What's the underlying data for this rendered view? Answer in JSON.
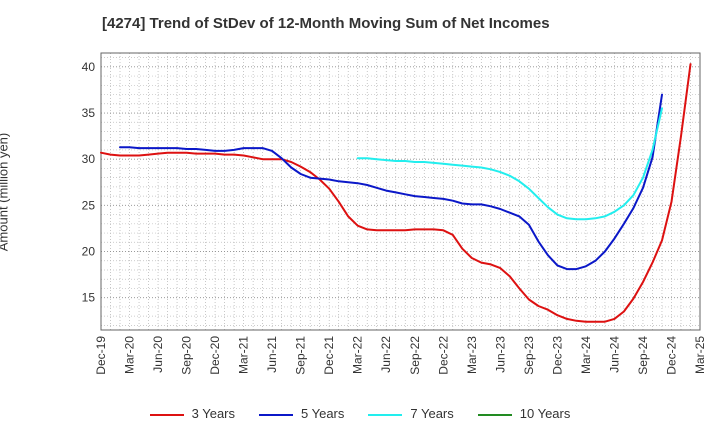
{
  "chart_data": {
    "type": "line",
    "title": "[4274]  Trend of StDev of 12-Month Moving Sum of Net Incomes",
    "xlabel": "",
    "ylabel": "Amount (million yen)",
    "x_tick_labels": [
      "Dec-19",
      "Mar-20",
      "Jun-20",
      "Sep-20",
      "Dec-20",
      "Mar-21",
      "Jun-21",
      "Sep-21",
      "Dec-21",
      "Mar-22",
      "Jun-22",
      "Sep-22",
      "Dec-22",
      "Mar-23",
      "Jun-23",
      "Sep-23",
      "Dec-23",
      "Mar-24",
      "Jun-24",
      "Sep-24",
      "Dec-24",
      "Mar-25"
    ],
    "y_ticks": [
      15,
      20,
      25,
      30,
      35,
      40
    ],
    "ylim": [
      11.5,
      41.5
    ],
    "grid": true,
    "legend_position": "bottom",
    "series": [
      {
        "name": "3 Years",
        "color": "#dd1111",
        "start_month_index": 0,
        "values": [
          30.7,
          30.5,
          30.4,
          30.4,
          30.4,
          30.5,
          30.6,
          30.7,
          30.7,
          30.7,
          30.6,
          30.6,
          30.6,
          30.5,
          30.5,
          30.4,
          30.2,
          30.0,
          30.0,
          30.0,
          29.7,
          29.2,
          28.6,
          27.8,
          26.8,
          25.4,
          23.8,
          22.8,
          22.4,
          22.3,
          22.3,
          22.3,
          22.3,
          22.4,
          22.4,
          22.4,
          22.3,
          21.8,
          20.3,
          19.3,
          18.8,
          18.6,
          18.2,
          17.3,
          16.0,
          14.8,
          14.1,
          13.7,
          13.1,
          12.7,
          12.5,
          12.4,
          12.4,
          12.4,
          12.7,
          13.5,
          14.9,
          16.7,
          18.8,
          21.2,
          25.4,
          32.5,
          40.3
        ]
      },
      {
        "name": "5 Years",
        "color": "#0b18c8",
        "start_month_index": 2,
        "values": [
          31.3,
          31.3,
          31.2,
          31.2,
          31.2,
          31.2,
          31.2,
          31.1,
          31.1,
          31.0,
          30.9,
          30.9,
          31.0,
          31.2,
          31.2,
          31.2,
          30.9,
          30.1,
          29.1,
          28.4,
          28.0,
          27.9,
          27.8,
          27.6,
          27.5,
          27.4,
          27.2,
          26.9,
          26.6,
          26.4,
          26.2,
          26.0,
          25.9,
          25.8,
          25.7,
          25.5,
          25.2,
          25.1,
          25.1,
          24.9,
          24.6,
          24.2,
          23.8,
          22.9,
          21.1,
          19.6,
          18.5,
          18.1,
          18.1,
          18.4,
          19.0,
          20.0,
          21.4,
          23.0,
          24.7,
          26.9,
          30.2,
          37.0
        ]
      },
      {
        "name": "7 Years",
        "color": "#22eeee",
        "start_month_index": 27,
        "values": [
          30.1,
          30.1,
          30.0,
          29.9,
          29.8,
          29.8,
          29.7,
          29.7,
          29.6,
          29.5,
          29.4,
          29.3,
          29.2,
          29.1,
          28.9,
          28.6,
          28.2,
          27.6,
          26.8,
          25.8,
          24.8,
          24.0,
          23.6,
          23.5,
          23.5,
          23.6,
          23.8,
          24.3,
          25.0,
          26.1,
          28.0,
          31.0,
          35.5
        ]
      },
      {
        "name": "10 Years",
        "color": "#228b22",
        "start_month_index": 0,
        "values": []
      }
    ]
  }
}
